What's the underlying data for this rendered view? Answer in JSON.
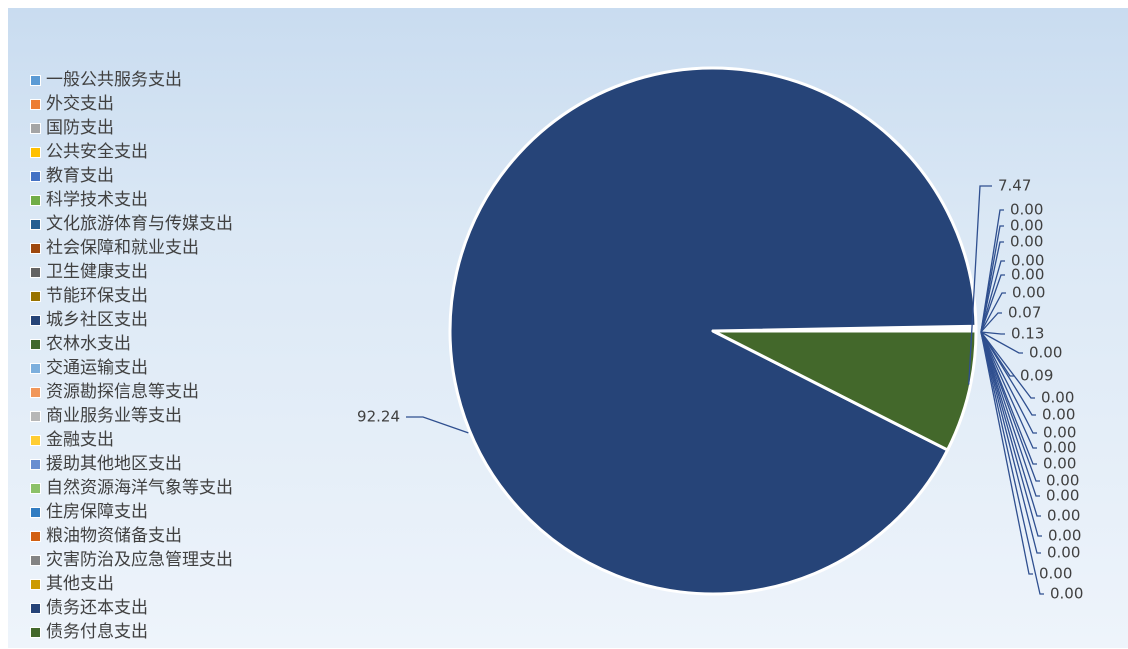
{
  "chart_data": {
    "type": "pie",
    "legend_position": "left",
    "slices": [
      {
        "name": "一般公共服务支出",
        "value": 0.0,
        "label": "0.00",
        "color": "#5b9bd5"
      },
      {
        "name": "外交支出",
        "value": 0.0,
        "label": "0.00",
        "color": "#ed7d31"
      },
      {
        "name": "国防支出",
        "value": 0.0,
        "label": "0.00",
        "color": "#a5a5a5"
      },
      {
        "name": "公共安全支出",
        "value": 0.0,
        "label": "0.00",
        "color": "#ffc000"
      },
      {
        "name": "教育支出",
        "value": 0.0,
        "label": "0.00",
        "color": "#4472c4"
      },
      {
        "name": "科学技术支出",
        "value": 0.0,
        "label": "0.00",
        "color": "#70ad47"
      },
      {
        "name": "文化旅游体育与传媒支出",
        "value": 0.07,
        "label": "0.07",
        "color": "#255e91"
      },
      {
        "name": "社会保障和就业支出",
        "value": 0.13,
        "label": "0.13",
        "color": "#9e480e"
      },
      {
        "name": "卫生健康支出",
        "value": 0.0,
        "label": "0.00",
        "color": "#636363"
      },
      {
        "name": "节能环保支出",
        "value": 0.09,
        "label": "0.09",
        "color": "#997300"
      },
      {
        "name": "城乡社区支出",
        "value": 0.0,
        "label": "0.00",
        "color": "#264478"
      },
      {
        "name": "农林水支出",
        "value": 0.0,
        "label": "0.00",
        "color": "#43682b"
      },
      {
        "name": "交通运输支出",
        "value": 0.0,
        "label": "0.00",
        "color": "#7cafdd"
      },
      {
        "name": "资源勘探信息等支出",
        "value": 0.0,
        "label": "0.00",
        "color": "#f1975a"
      },
      {
        "name": "商业服务业等支出",
        "value": 0.0,
        "label": "0.00",
        "color": "#b7b7b7"
      },
      {
        "name": "金融支出",
        "value": 0.0,
        "label": "0.00",
        "color": "#ffcd33"
      },
      {
        "name": "援助其他地区支出",
        "value": 0.0,
        "label": "0.00",
        "color": "#698ed0"
      },
      {
        "name": "自然资源海洋气象等支出",
        "value": 0.0,
        "label": "0.00",
        "color": "#8cc168"
      },
      {
        "name": "住房保障支出",
        "value": 0.0,
        "label": "0.00",
        "color": "#327dc2"
      },
      {
        "name": "粮油物资储备支出",
        "value": 0.0,
        "label": "0.00",
        "color": "#d26012"
      },
      {
        "name": "灾害防治及应急管理支出",
        "value": 0.0,
        "label": "0.00",
        "color": "#848484"
      },
      {
        "name": "其他支出",
        "value": 0.0,
        "label": "0.00",
        "color": "#cc9a00"
      },
      {
        "name": "债务还本支出",
        "value": 92.24,
        "label": "92.24",
        "color": "#264478"
      },
      {
        "name": "债务付息支出",
        "value": 7.47,
        "label": "7.47",
        "color": "#43682b"
      }
    ]
  }
}
